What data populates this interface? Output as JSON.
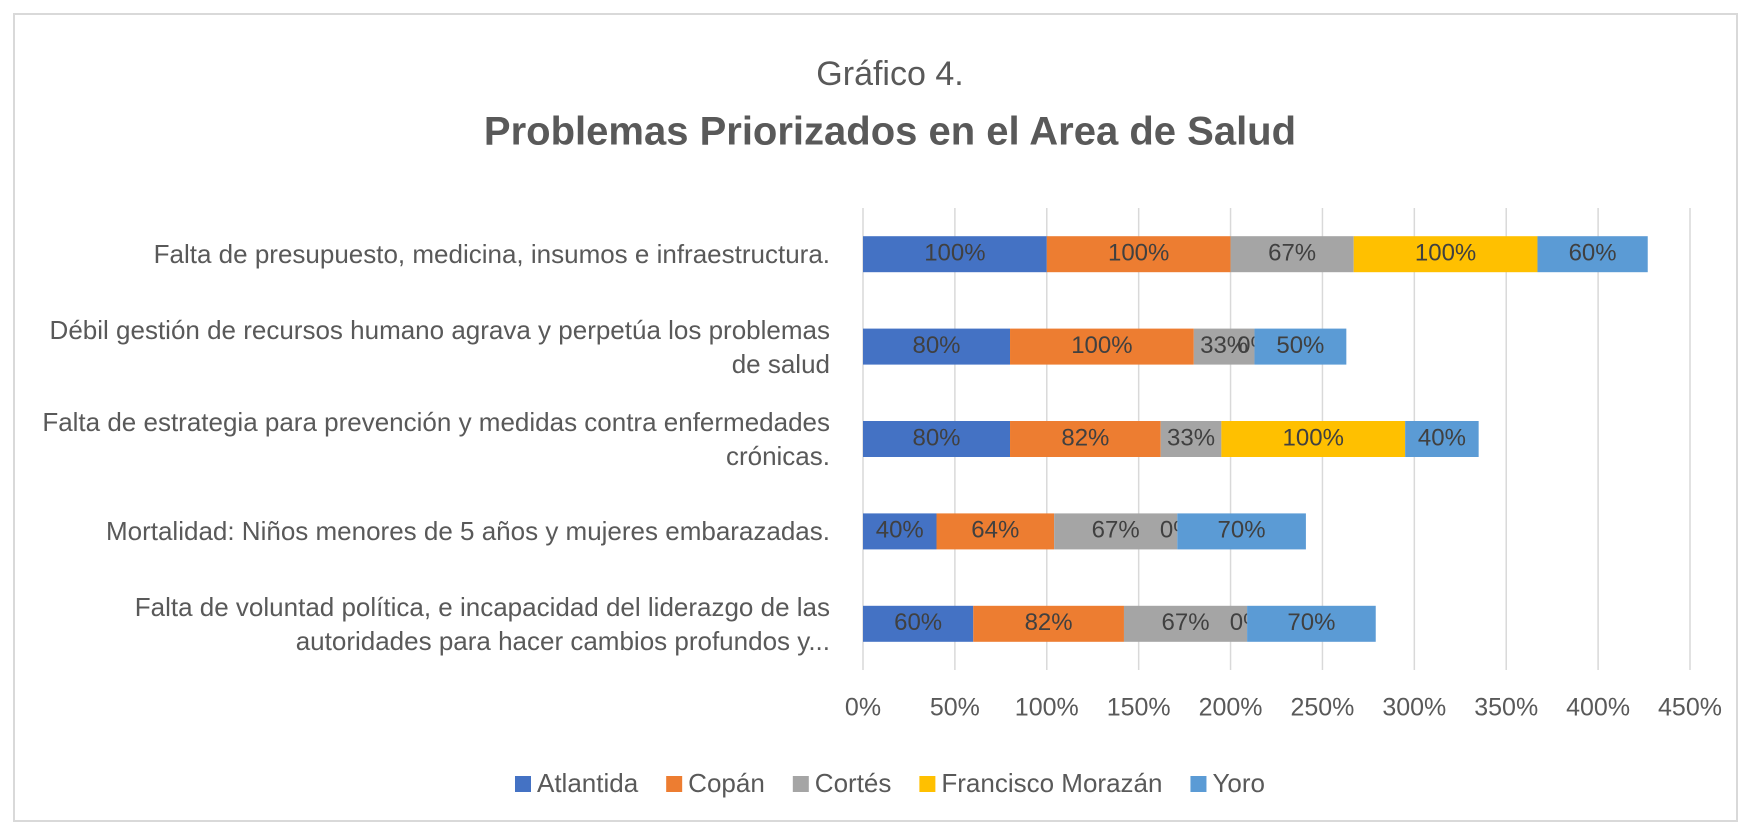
{
  "chart_data": {
    "type": "stacked_bar_horizontal",
    "title": "Gráfico 4.",
    "subtitle": "Problemas Priorizados en el Area de Salud",
    "categories": [
      "Falta de presupuesto, medicina, insumos e infraestructura.",
      "Débil gestión de recursos humano agrava y perpetúa los problemas de salud",
      "Falta de estrategia para prevención y medidas contra enfermedades crónicas.",
      "Mortalidad: Niños menores de 5 años y mujeres embarazadas.",
      "Falta de voluntad política, e incapacidad del liderazgo de las autoridades para hacer cambios profundos y..."
    ],
    "series": [
      {
        "name": "Atlantida",
        "color": "#4472c4",
        "values": [
          100,
          80,
          80,
          40,
          60
        ],
        "value_labels": [
          "100%",
          "80%",
          "80%",
          "40%",
          "60%"
        ]
      },
      {
        "name": "Copán",
        "color": "#ed7d31",
        "values": [
          100,
          100,
          82,
          64,
          82
        ],
        "value_labels": [
          "100%",
          "100%",
          "82%",
          "64%",
          "82%"
        ]
      },
      {
        "name": "Cortés",
        "color": "#a5a5a5",
        "values": [
          67,
          33,
          33,
          67,
          67
        ],
        "value_labels": [
          "67%",
          "33%",
          "33%",
          "67%",
          "67%"
        ]
      },
      {
        "name": "Francisco Morazán",
        "color": "#ffc000",
        "values": [
          100,
          0,
          100,
          0,
          0
        ],
        "value_labels": [
          "100%",
          "0%",
          "100%",
          "0%",
          "0%"
        ]
      },
      {
        "name": "Yoro",
        "color": "#5b9bd5",
        "values": [
          60,
          50,
          40,
          70,
          70
        ],
        "value_labels": [
          "60%",
          "50%",
          "40%",
          "70%",
          "70%"
        ]
      }
    ],
    "xlim": [
      0,
      450
    ],
    "xticks": [
      {
        "value": 0,
        "label": "0%"
      },
      {
        "value": 50,
        "label": "50%"
      },
      {
        "value": 100,
        "label": "100%"
      },
      {
        "value": 150,
        "label": "150%"
      },
      {
        "value": 200,
        "label": "200%"
      },
      {
        "value": 250,
        "label": "250%"
      },
      {
        "value": 300,
        "label": "300%"
      },
      {
        "value": 350,
        "label": "350%"
      },
      {
        "value": 400,
        "label": "400%"
      },
      {
        "value": 450,
        "label": "450%"
      }
    ],
    "grid": true,
    "legend": "bottom"
  }
}
